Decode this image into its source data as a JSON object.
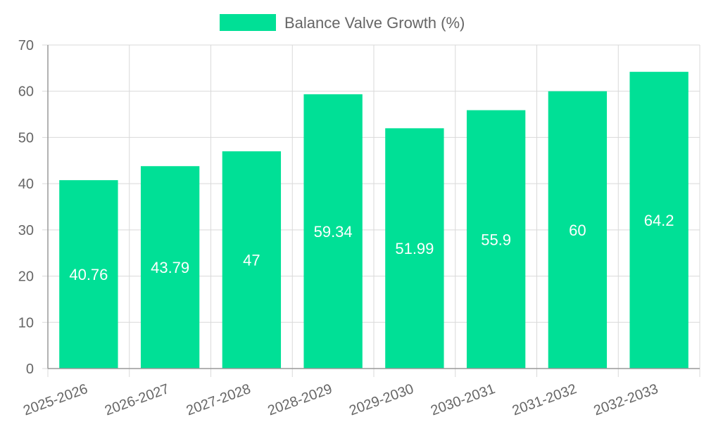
{
  "chart_data": {
    "type": "bar",
    "title": "",
    "xlabel": "",
    "ylabel": "",
    "categories": [
      "2025-2026",
      "2026-2027",
      "2027-2028",
      "2028-2029",
      "2029-2030",
      "2030-2031",
      "2031-2032",
      "2032-2033"
    ],
    "series": [
      {
        "name": "Balance Valve Growth (%)",
        "values": [
          40.76,
          43.79,
          47,
          59.34,
          51.99,
          55.9,
          60,
          64.2
        ],
        "color": "#00e096"
      }
    ],
    "data_labels": [
      "40.76",
      "43.79",
      "47",
      "59.34",
      "51.99",
      "55.9",
      "60",
      "64.2"
    ],
    "ylim": [
      0,
      70
    ],
    "yticks": [
      0,
      10,
      20,
      30,
      40,
      50,
      60,
      70
    ],
    "grid": true,
    "legend_position": "top-center"
  }
}
